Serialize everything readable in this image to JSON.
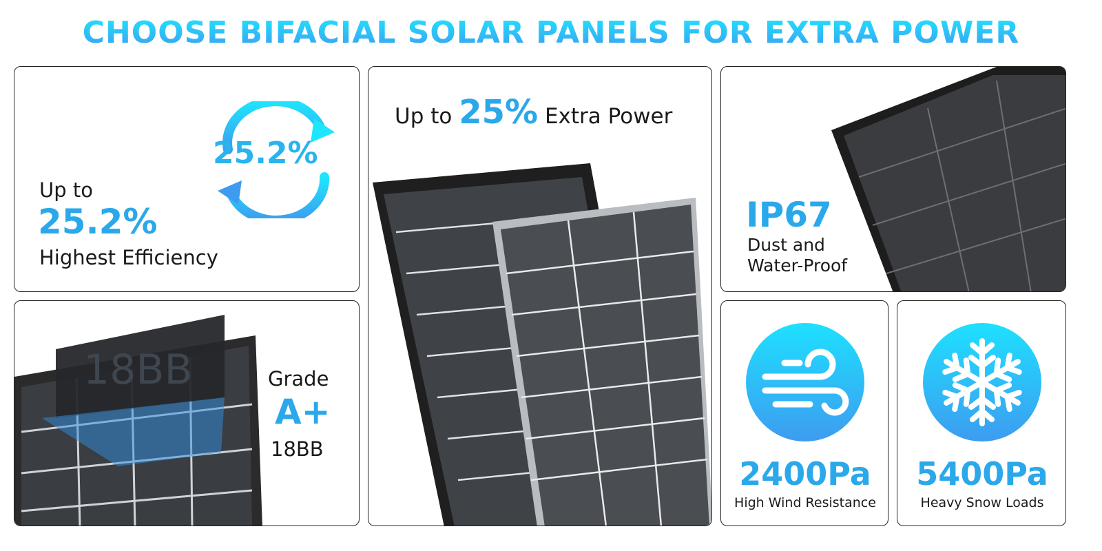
{
  "title": "CHOOSE BIFACIAL SOLAR PANELS FOR EXTRA POWER",
  "accent": "#2aa8ea",
  "efficiency": {
    "up_to": "Up to",
    "value": "25.2%",
    "label": "Highest Efficiency",
    "cycle_value": "25.2%",
    "icon": "refresh-cycle-icon"
  },
  "grade": {
    "label": "Grade",
    "value": "A+",
    "sub": "18BB",
    "panel_text": "18BB"
  },
  "extra_power": {
    "prefix": "Up to",
    "value": "25%",
    "suffix": "Extra Power"
  },
  "ip": {
    "value": "IP67",
    "line1": "Dust and",
    "line2": "Water-Proof"
  },
  "wind": {
    "value": "2400Pa",
    "label": "High Wind Resistance",
    "icon": "wind-icon"
  },
  "snow": {
    "value": "5400Pa",
    "label": "Heavy Snow Loads",
    "icon": "snowflake-icon"
  }
}
